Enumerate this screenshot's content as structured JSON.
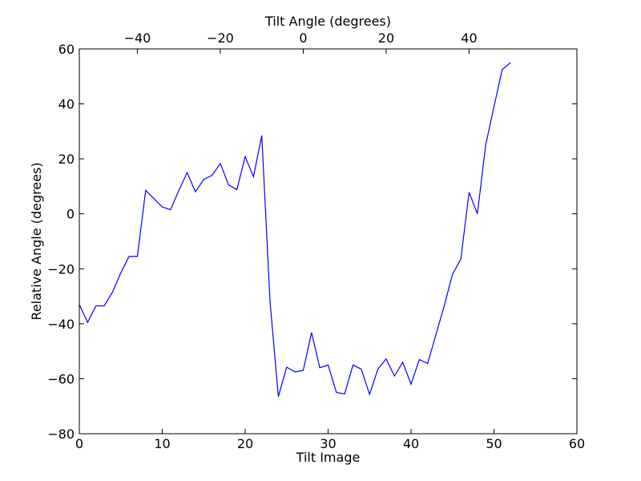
{
  "chart_data": {
    "type": "line",
    "title": "",
    "xlabel": "Tilt Image",
    "ylabel": "Relative Angle (degrees)",
    "x2label": "Tilt Angle (degrees)",
    "xlim": [
      0,
      60
    ],
    "ylim": [
      -80,
      60
    ],
    "x2lim": [
      -54,
      66
    ],
    "xticks": [
      0,
      10,
      20,
      30,
      40,
      50,
      60
    ],
    "yticks": [
      -80,
      -60,
      -40,
      -20,
      0,
      20,
      40,
      60
    ],
    "x2ticks": [
      -40,
      -20,
      0,
      20,
      40
    ],
    "xtick_labels": [
      "0",
      "10",
      "20",
      "30",
      "40",
      "50",
      "60"
    ],
    "ytick_labels": [
      "−80",
      "−60",
      "−40",
      "−20",
      "0",
      "20",
      "40",
      "60"
    ],
    "x2tick_labels": [
      "−40",
      "−20",
      "0",
      "20",
      "40"
    ],
    "grid": false,
    "line_color": "#0000ff",
    "series": [
      {
        "x": [
          0,
          1,
          2,
          3,
          4,
          5,
          6,
          7,
          8,
          9,
          10,
          11,
          12,
          13,
          14,
          15,
          16,
          17,
          18,
          19,
          20,
          21,
          22,
          23,
          24,
          25,
          26,
          27,
          28,
          29,
          30,
          31,
          32,
          33,
          34,
          35,
          36,
          37,
          38,
          39,
          40,
          41,
          42,
          43,
          44,
          45,
          46,
          47,
          48,
          49,
          50,
          51,
          52
        ],
        "values": [
          -33,
          -39.5,
          -33.5,
          -33.5,
          -28.5,
          -21.5,
          -15.5,
          -15.5,
          8.5,
          5.5,
          2.5,
          1.5,
          8.5,
          15,
          8,
          12.5,
          14,
          18.3,
          10.5,
          8.8,
          20.8,
          13.5,
          28.5,
          -32,
          -66.5,
          -55.8,
          -57.5,
          -57,
          -43.2,
          -56,
          -55,
          -65,
          -65.5,
          -55,
          -56.5,
          -65.7,
          -56.5,
          -52.8,
          -59,
          -54,
          -62,
          -53,
          -54.5,
          -44,
          -33.5,
          -22,
          -16.5,
          7.8,
          0,
          25,
          39,
          52.5,
          55
        ]
      }
    ]
  }
}
